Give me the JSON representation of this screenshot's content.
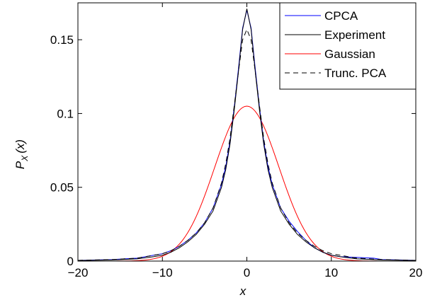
{
  "chart_data": {
    "type": "line",
    "title": "",
    "xlabel": "x",
    "ylabel": {
      "main": "P",
      "sub": "X",
      "arg": "(x)"
    },
    "xlim": [
      -20,
      20
    ],
    "ylim": [
      0,
      0.175
    ],
    "xticks": [
      -20,
      -10,
      0,
      10,
      20
    ],
    "xtick_labels": [
      "−20",
      "−10",
      "0",
      "10",
      "20"
    ],
    "yticks": [
      0,
      0.05,
      0.1,
      0.15
    ],
    "ytick_labels": [
      "0",
      "0.05",
      "0.1",
      "0.15"
    ],
    "grid": false,
    "legend_position": "top-right",
    "series": [
      {
        "name": "CPCA",
        "color": "#0000ff",
        "dash": "solid",
        "x": [
          -20,
          -16,
          -13,
          -11,
          -10,
          -9,
          -8,
          -7,
          -6,
          -5,
          -4,
          -3,
          -2.5,
          -2,
          -1.5,
          -1,
          -0.5,
          0,
          0.5,
          1,
          1.5,
          2,
          2.5,
          3,
          4,
          5,
          6,
          7,
          8,
          9,
          10,
          11,
          13,
          15,
          16,
          18,
          20
        ],
        "y": [
          0.0005,
          0.001,
          0.002,
          0.004,
          0.005,
          0.007,
          0.01,
          0.014,
          0.019,
          0.026,
          0.036,
          0.052,
          0.064,
          0.081,
          0.104,
          0.13,
          0.158,
          0.17,
          0.158,
          0.13,
          0.104,
          0.081,
          0.064,
          0.052,
          0.036,
          0.027,
          0.02,
          0.014,
          0.009,
          0.006,
          0.004,
          0.003,
          0.0025,
          0.002,
          0.001,
          0.0008,
          0.0005
        ]
      },
      {
        "name": "Experiment",
        "color": "#000000",
        "dash": "solid",
        "x": [
          -20,
          -16,
          -13,
          -11,
          -10,
          -9,
          -8,
          -7,
          -6,
          -5,
          -4,
          -3,
          -2.5,
          -2,
          -1.5,
          -1,
          -0.5,
          0,
          0.5,
          1,
          1.5,
          2,
          2.5,
          3,
          4,
          5,
          6,
          7,
          8,
          9,
          10,
          11,
          13,
          16,
          20
        ],
        "y": [
          0.0004,
          0.0008,
          0.0015,
          0.003,
          0.004,
          0.006,
          0.009,
          0.013,
          0.018,
          0.025,
          0.034,
          0.05,
          0.062,
          0.079,
          0.102,
          0.128,
          0.157,
          0.171,
          0.157,
          0.128,
          0.102,
          0.079,
          0.062,
          0.05,
          0.034,
          0.025,
          0.018,
          0.013,
          0.009,
          0.006,
          0.004,
          0.003,
          0.0015,
          0.0008,
          0.0004
        ]
      },
      {
        "name": "Gaussian",
        "color": "#ff0000",
        "dash": "solid",
        "gaussian": {
          "amplitude": 0.105,
          "mean": 0,
          "sigma": 3.8,
          "x_min": -20,
          "x_max": 20,
          "samples": 161
        }
      },
      {
        "name": "Trunc. PCA",
        "color": "#000000",
        "dash": "dashed",
        "x": [
          -20,
          -16,
          -13,
          -11,
          -10,
          -9,
          -8,
          -7,
          -6,
          -5,
          -4,
          -3,
          -2.5,
          -2,
          -1.5,
          -1,
          -0.5,
          0,
          0.5,
          1,
          1.5,
          2,
          2.5,
          3,
          4,
          5,
          6,
          7,
          8,
          9,
          10,
          11,
          13,
          16,
          20
        ],
        "y": [
          0.0005,
          0.001,
          0.002,
          0.004,
          0.005,
          0.007,
          0.01,
          0.014,
          0.019,
          0.026,
          0.036,
          0.053,
          0.066,
          0.083,
          0.105,
          0.128,
          0.15,
          0.157,
          0.15,
          0.128,
          0.105,
          0.083,
          0.066,
          0.053,
          0.036,
          0.026,
          0.019,
          0.014,
          0.01,
          0.007,
          0.005,
          0.004,
          0.002,
          0.001,
          0.0005
        ]
      }
    ]
  }
}
